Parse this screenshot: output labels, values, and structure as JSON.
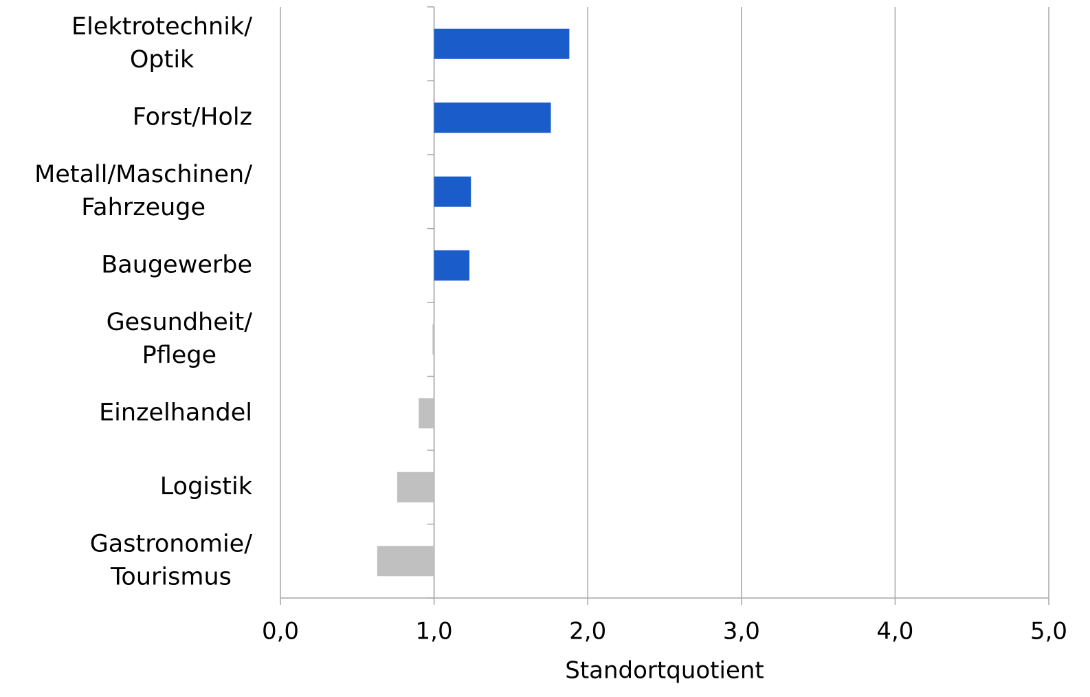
{
  "chart_data": {
    "type": "hbar",
    "categories": [
      [
        "Elektrotechnik/",
        "Optik"
      ],
      [
        "Forst/Holz"
      ],
      [
        "Metall/Maschinen/",
        "Fahrzeuge"
      ],
      [
        "Baugewerbe"
      ],
      [
        "Gesundheit/",
        "Pflege"
      ],
      [
        "Einzelhandel"
      ],
      [
        "Logistik"
      ],
      [
        "Gastronomie/",
        "Tourismus"
      ]
    ],
    "values": [
      1.88,
      1.76,
      1.24,
      1.23,
      0.99,
      0.9,
      0.76,
      0.63
    ],
    "colors": [
      "#1a5cc9",
      "#1a5cc9",
      "#1a5cc9",
      "#1a5cc9",
      "#c0c0c0",
      "#c0c0c0",
      "#c0c0c0",
      "#c0c0c0"
    ],
    "xlabel": "Standortquotient",
    "xlim": [
      0,
      5
    ],
    "xticks": [
      {
        "value": 0,
        "label": "0,0"
      },
      {
        "value": 1,
        "label": "1,0"
      },
      {
        "value": 2,
        "label": "2,0"
      },
      {
        "value": 3,
        "label": "3,0"
      },
      {
        "value": 4,
        "label": "4,0"
      },
      {
        "value": 5,
        "label": "5,0"
      }
    ],
    "axis_crossing": 1,
    "grid": true
  }
}
